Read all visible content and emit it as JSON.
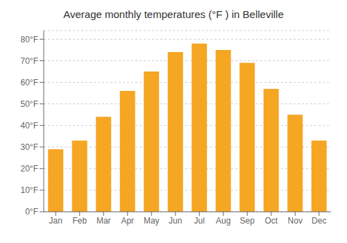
{
  "chart_data": {
    "type": "bar",
    "title": "Average monthly temperatures (°F ) in Belleville",
    "categories": [
      "Jan",
      "Feb",
      "Mar",
      "Apr",
      "May",
      "Jun",
      "Jul",
      "Aug",
      "Sep",
      "Oct",
      "Nov",
      "Dec"
    ],
    "values": [
      29,
      33,
      44,
      56,
      65,
      74,
      78,
      75,
      69,
      57,
      45,
      33
    ],
    "color": "#F5A623",
    "ylim": [
      0,
      84
    ],
    "yticks": [
      {
        "value": 0,
        "label": "0°F"
      },
      {
        "value": 10,
        "label": "10°F"
      },
      {
        "value": 20,
        "label": "20°F"
      },
      {
        "value": 30,
        "label": "30°F"
      },
      {
        "value": 40,
        "label": "40°F"
      },
      {
        "value": 50,
        "label": "50°F"
      },
      {
        "value": 60,
        "label": "60°F"
      },
      {
        "value": 70,
        "label": "70°F"
      },
      {
        "value": 80,
        "label": "80°F"
      }
    ],
    "grid": true
  }
}
